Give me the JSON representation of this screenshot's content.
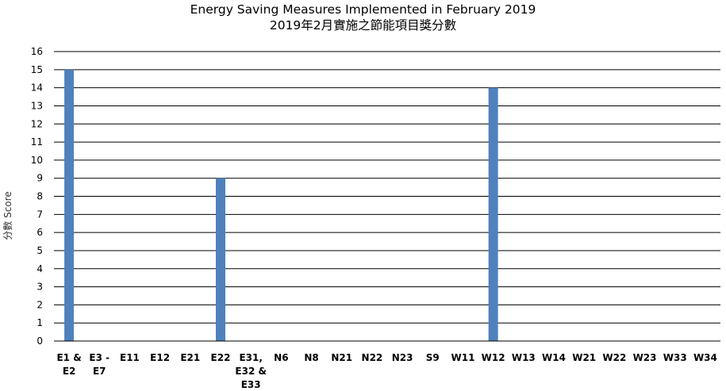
{
  "chart_data": {
    "type": "bar",
    "title": "Energy Saving Measures Implemented in February 2019",
    "subtitle": "2019年2月實施之節能項目獎分數",
    "ylabel": "分數 Score",
    "xlabel": "",
    "ylim": [
      0,
      16
    ],
    "yticks": [
      "0",
      "1",
      "2",
      "3",
      "4",
      "5",
      "6",
      "7",
      "8",
      "9",
      "10",
      "11",
      "12",
      "13",
      "14",
      "15",
      "16"
    ],
    "grid": true,
    "bar_color": "#4f81bd",
    "categories": [
      [
        "E1 &",
        "E2"
      ],
      [
        "E3 -",
        "E7"
      ],
      [
        "E11"
      ],
      [
        "E12"
      ],
      [
        "E21"
      ],
      [
        "E22"
      ],
      [
        "E31,",
        "E32 &",
        "E33"
      ],
      [
        "N6"
      ],
      [
        "N8"
      ],
      [
        "N21"
      ],
      [
        "N22"
      ],
      [
        "N23"
      ],
      [
        "S9"
      ],
      [
        "W11"
      ],
      [
        "W12"
      ],
      [
        "W13"
      ],
      [
        "W14"
      ],
      [
        "W21"
      ],
      [
        "W22"
      ],
      [
        "W23"
      ],
      [
        "W33"
      ],
      [
        "W34"
      ]
    ],
    "values": [
      15,
      0,
      0,
      0,
      0,
      9,
      0,
      0,
      0,
      0,
      0,
      0,
      0,
      0,
      14,
      0,
      0,
      0,
      0,
      0,
      0,
      0
    ]
  }
}
